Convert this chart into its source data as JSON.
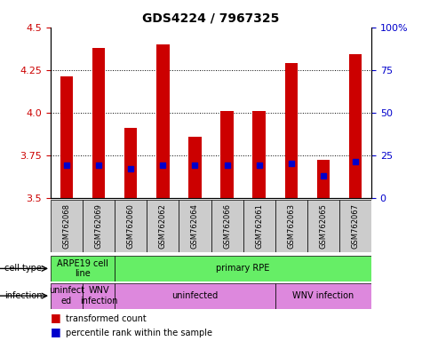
{
  "title": "GDS4224 / 7967325",
  "samples": [
    "GSM762068",
    "GSM762069",
    "GSM762060",
    "GSM762062",
    "GSM762064",
    "GSM762066",
    "GSM762061",
    "GSM762063",
    "GSM762065",
    "GSM762067"
  ],
  "transformed_counts": [
    4.21,
    4.38,
    3.91,
    4.4,
    3.86,
    4.01,
    4.01,
    4.29,
    3.72,
    4.34
  ],
  "percentile_values": [
    3.69,
    3.69,
    3.67,
    3.69,
    3.69,
    3.69,
    3.69,
    3.7,
    3.63,
    3.71
  ],
  "ylim_left": [
    3.5,
    4.5
  ],
  "ylim_right": [
    0,
    100
  ],
  "yticks_left": [
    3.5,
    3.75,
    4.0,
    4.25,
    4.5
  ],
  "yticks_right": [
    0,
    25,
    50,
    75,
    100
  ],
  "bar_color": "#cc0000",
  "percentile_color": "#0000cc",
  "sample_bg_color": "#cccccc",
  "left_axis_color": "#cc0000",
  "right_axis_color": "#0000cc",
  "cell_groups": [
    {
      "label": "ARPE19 cell\nline",
      "start": 0,
      "end": 2,
      "color": "#66ee66"
    },
    {
      "label": "primary RPE",
      "start": 2,
      "end": 10,
      "color": "#66ee66"
    }
  ],
  "infection_groups": [
    {
      "label": "uninfect\ned",
      "start": 0,
      "end": 1,
      "color": "#dd88dd"
    },
    {
      "label": "WNV\ninfection",
      "start": 1,
      "end": 2,
      "color": "#dd88dd"
    },
    {
      "label": "uninfected",
      "start": 2,
      "end": 7,
      "color": "#dd88dd"
    },
    {
      "label": "WNV infection",
      "start": 7,
      "end": 10,
      "color": "#dd88dd"
    }
  ]
}
